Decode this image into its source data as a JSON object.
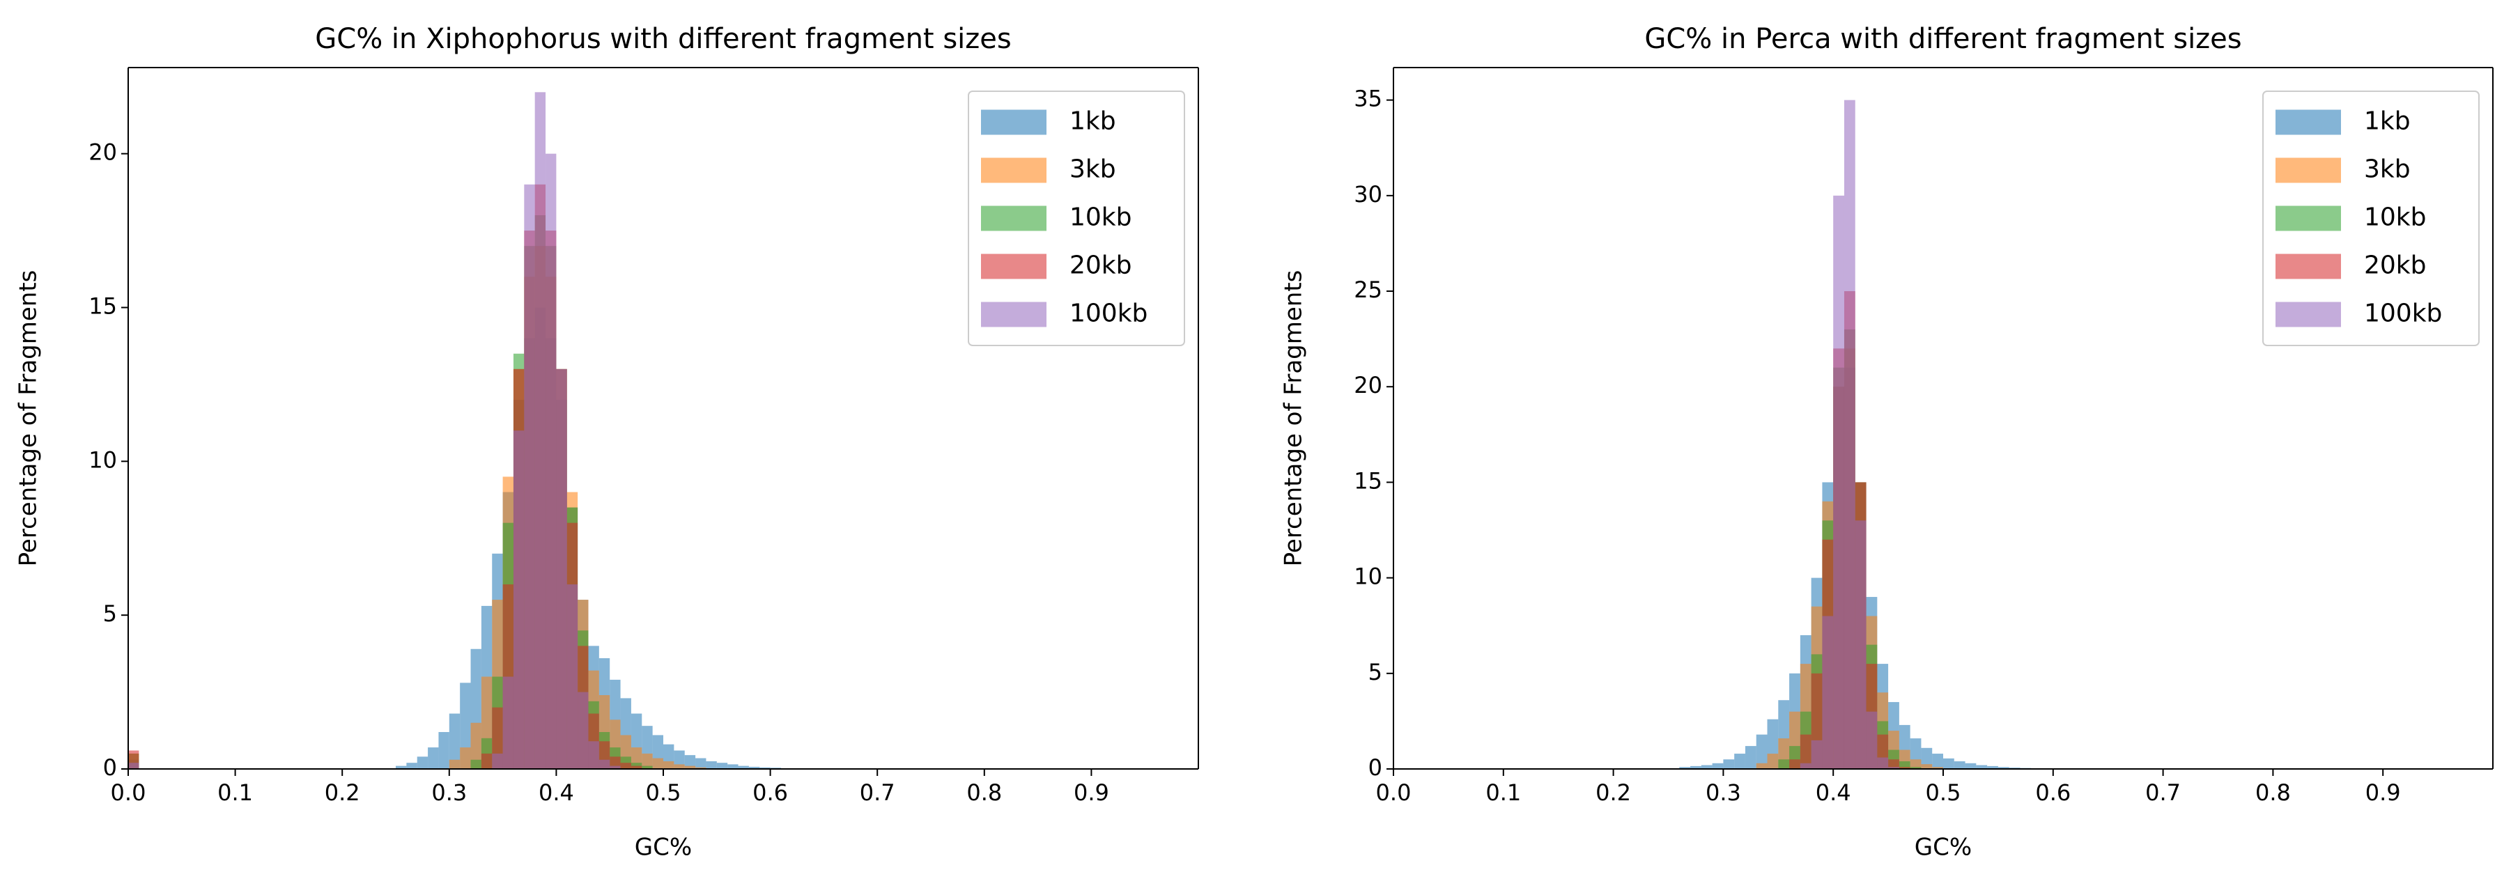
{
  "chart_data": [
    {
      "type": "histogram",
      "title": "GC% in Xiphophorus with different fragment sizes",
      "xlabel": "GC%",
      "ylabel": "Percentage of Fragments",
      "bins": [
        0,
        0.01,
        0.25,
        0.26,
        0.27,
        0.28,
        0.29,
        0.3,
        0.31,
        0.32,
        0.33,
        0.34,
        0.35,
        0.36,
        0.37,
        0.38,
        0.39,
        0.4,
        0.41,
        0.42,
        0.43,
        0.44,
        0.45,
        0.46,
        0.47,
        0.48,
        0.49,
        0.5,
        0.51,
        0.52,
        0.53,
        0.54,
        0.55,
        0.56,
        0.57,
        0.58,
        0.59,
        0.6,
        0.61,
        0.62,
        1
      ],
      "series": [
        {
          "name": "1kb",
          "color": "#1f77b4",
          "values": [
            0.3,
            0,
            0.1,
            0.2,
            0.4,
            0.7,
            1.2,
            1.8,
            2.8,
            3.9,
            5.3,
            7.0,
            9.0,
            12,
            14,
            15,
            14,
            12,
            8.5,
            5.5,
            4.0,
            3.6,
            2.9,
            2.3,
            1.8,
            1.4,
            1.1,
            0.8,
            0.6,
            0.45,
            0.35,
            0.25,
            0.2,
            0.15,
            0.1,
            0.07,
            0.05,
            0.04,
            0.02,
            0
          ]
        },
        {
          "name": "3kb",
          "color": "#ff7f0e",
          "values": [
            0.5,
            0,
            0,
            0,
            0,
            0,
            0,
            0.3,
            0.7,
            1.5,
            3,
            5.5,
            9.5,
            13,
            16,
            17,
            16,
            13,
            9,
            5.5,
            3.2,
            2.4,
            1.6,
            1.1,
            0.7,
            0.5,
            0.35,
            0.25,
            0.15,
            0.1,
            0.05,
            0,
            0,
            0,
            0,
            0,
            0,
            0,
            0,
            0
          ]
        },
        {
          "name": "10kb",
          "color": "#2ca02c",
          "values": [
            0.5,
            0,
            0,
            0,
            0,
            0,
            0,
            0,
            0,
            0.3,
            1,
            3,
            8,
            13.5,
            17,
            18,
            17,
            13,
            8.5,
            4.5,
            2.2,
            1.2,
            0.7,
            0.4,
            0.2,
            0.1,
            0,
            0,
            0,
            0,
            0,
            0,
            0,
            0,
            0,
            0,
            0,
            0,
            0,
            0
          ]
        },
        {
          "name": "20kb",
          "color": "#d62728",
          "values": [
            0.6,
            0,
            0,
            0,
            0,
            0,
            0,
            0,
            0,
            0,
            0.5,
            2,
            6,
            13,
            17.5,
            19,
            17.5,
            13,
            8,
            4,
            1.8,
            0.9,
            0.4,
            0.2,
            0.1,
            0,
            0,
            0,
            0,
            0,
            0,
            0,
            0,
            0,
            0,
            0,
            0,
            0,
            0,
            0
          ]
        },
        {
          "name": "100kb",
          "color": "#9467bd",
          "values": [
            0.2,
            0,
            0,
            0,
            0,
            0,
            0,
            0,
            0,
            0,
            0,
            0.5,
            3,
            11,
            19,
            22,
            20,
            13,
            6,
            2.5,
            0.9,
            0.3,
            0.1,
            0,
            0,
            0,
            0,
            0,
            0,
            0,
            0,
            0,
            0,
            0,
            0,
            0,
            0,
            0,
            0,
            0
          ]
        }
      ],
      "xlim": [
        0,
        1
      ],
      "ylim": [
        0,
        22.8
      ],
      "xticks": [
        {
          "value": 0,
          "label": "0.0"
        },
        0.1,
        0.2,
        0.3,
        0.4,
        0.5,
        0.6,
        0.7,
        0.8,
        0.9
      ],
      "yticks": [
        0,
        5,
        10,
        15,
        20
      ],
      "legend": "upper right",
      "grid": false
    },
    {
      "type": "histogram",
      "title": "GC% in Perca with different fragment sizes",
      "xlabel": "GC%",
      "ylabel": "Percentage of Fragments",
      "bins": [
        0,
        0.01,
        0.25,
        0.26,
        0.27,
        0.28,
        0.29,
        0.3,
        0.31,
        0.32,
        0.33,
        0.34,
        0.35,
        0.36,
        0.37,
        0.38,
        0.39,
        0.4,
        0.41,
        0.42,
        0.43,
        0.44,
        0.45,
        0.46,
        0.47,
        0.48,
        0.49,
        0.5,
        0.51,
        0.52,
        0.53,
        0.54,
        0.55,
        0.56,
        0.57,
        0.58,
        0.59,
        0.6,
        0.61,
        0.62,
        1
      ],
      "series": [
        {
          "name": "1kb",
          "color": "#1f77b4",
          "values": [
            0,
            0,
            0,
            0.1,
            0.15,
            0.2,
            0.3,
            0.5,
            0.8,
            1.2,
            1.8,
            2.6,
            3.6,
            5,
            7,
            10,
            15,
            20,
            21,
            15,
            9,
            5.5,
            3.5,
            2.3,
            1.6,
            1.1,
            0.8,
            0.55,
            0.4,
            0.3,
            0.2,
            0.15,
            0.1,
            0.07,
            0.05,
            0,
            0,
            0,
            0,
            0
          ]
        },
        {
          "name": "3kb",
          "color": "#ff7f0e",
          "values": [
            0,
            0,
            0,
            0,
            0,
            0,
            0,
            0,
            0,
            0,
            0.3,
            0.8,
            1.6,
            3,
            5.5,
            8.5,
            14,
            20,
            22,
            15,
            8,
            4,
            2,
            1,
            0.5,
            0.25,
            0.1,
            0,
            0,
            0,
            0,
            0,
            0,
            0,
            0,
            0,
            0,
            0,
            0,
            0
          ]
        },
        {
          "name": "10kb",
          "color": "#2ca02c",
          "values": [
            0,
            0,
            0,
            0,
            0,
            0,
            0,
            0,
            0,
            0,
            0,
            0,
            0.5,
            1.2,
            3,
            6,
            13,
            21,
            23,
            15,
            6.5,
            2.5,
            1,
            0.4,
            0.1,
            0,
            0,
            0,
            0,
            0,
            0,
            0,
            0,
            0,
            0,
            0,
            0,
            0,
            0,
            0
          ]
        },
        {
          "name": "20kb",
          "color": "#d62728",
          "values": [
            0,
            0,
            0,
            0,
            0,
            0,
            0,
            0,
            0,
            0,
            0,
            0,
            0,
            0.5,
            1.8,
            5,
            12,
            22,
            25,
            15,
            5.5,
            1.8,
            0.5,
            0.1,
            0,
            0,
            0,
            0,
            0,
            0,
            0,
            0,
            0,
            0,
            0,
            0,
            0,
            0,
            0,
            0
          ]
        },
        {
          "name": "100kb",
          "color": "#9467bd",
          "values": [
            0,
            0,
            0,
            0,
            0,
            0,
            0,
            0,
            0,
            0,
            0,
            0,
            0,
            0,
            0.3,
            1.5,
            8,
            30,
            35,
            13,
            3,
            0.6,
            0.1,
            0,
            0,
            0,
            0,
            0,
            0,
            0,
            0,
            0,
            0,
            0,
            0,
            0,
            0,
            0,
            0,
            0
          ]
        }
      ],
      "xlim": [
        0,
        1
      ],
      "ylim": [
        0,
        36.7
      ],
      "xticks": [
        {
          "value": 0,
          "label": "0.0"
        },
        0.1,
        0.2,
        0.3,
        0.4,
        0.5,
        0.6,
        0.7,
        0.8,
        0.9
      ],
      "yticks": [
        0,
        5,
        10,
        15,
        20,
        25,
        30,
        35
      ],
      "legend": "upper right",
      "grid": false
    }
  ]
}
